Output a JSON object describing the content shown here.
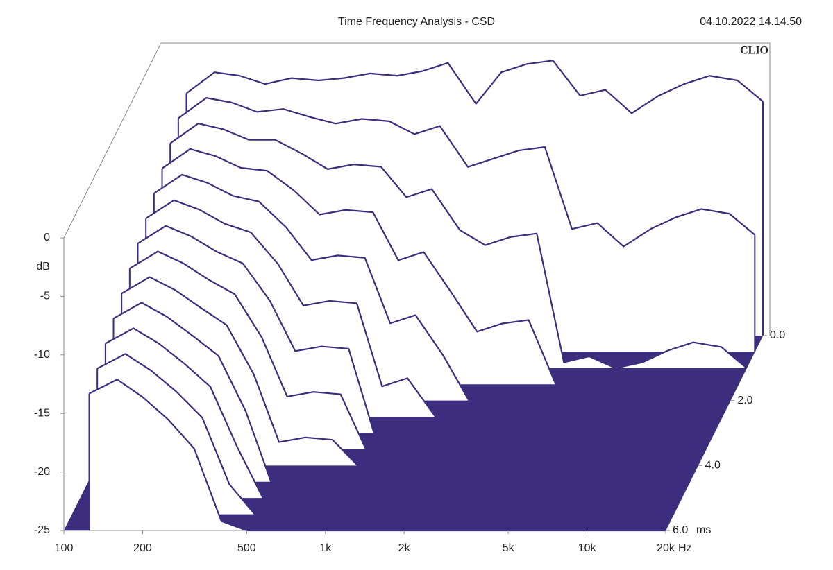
{
  "chart_data": {
    "type": "waterfall",
    "title": "Time Frequency Analysis - CSD",
    "timestamp": "04.10.2022 14.14.50",
    "brand": "CLIO",
    "ylabel": "dB",
    "xunit": "Hz",
    "zunit": "ms",
    "xscale": "log",
    "color": "#3c2d7e",
    "xlim": [
      100,
      20000
    ],
    "ylim": [
      -25,
      0
    ],
    "zlim": [
      0,
      6
    ],
    "xticks": [
      100,
      200,
      500,
      {
        "value": 1000,
        "label": "1k"
      },
      {
        "value": 2000,
        "label": "2k"
      },
      {
        "value": 5000,
        "label": "5k"
      },
      {
        "value": 10000,
        "label": "10k"
      },
      {
        "value": 20000,
        "label": "20k"
      }
    ],
    "yticks": [
      0,
      -5,
      -10,
      -15,
      -20,
      -25
    ],
    "zticks": [
      {
        "value": 0,
        "label": "0.0"
      },
      {
        "value": 2,
        "label": "2.0"
      },
      {
        "value": 4,
        "label": "4.0"
      },
      {
        "value": 6,
        "label": "6.0"
      }
    ],
    "x": [
      125,
      160,
      200,
      250,
      315,
      400,
      500,
      630,
      800,
      1000,
      1250,
      1600,
      2000,
      2500,
      3150,
      4000,
      5000,
      6300,
      8000,
      10000,
      12500,
      16000,
      20000
    ],
    "z": [
      0,
      0.5,
      1,
      1.5,
      2,
      2.5,
      3,
      3.5,
      4,
      4.5,
      5,
      5.5,
      6
    ],
    "values": [
      [
        -4.3,
        -2.5,
        -2.8,
        -3.5,
        -3,
        -3.2,
        -3,
        -2.6,
        -2.8,
        -2.4,
        -1.7,
        -5.2,
        -2.5,
        -1.8,
        -1.5,
        -4.5,
        -4,
        -6,
        -4.5,
        -3.5,
        -2.8,
        -3.2,
        -5
      ],
      [
        -5.05,
        -3.3,
        -3.7,
        -4.5,
        -4.25,
        -4.95,
        -5.5,
        -5.1,
        -5.3,
        -6.4,
        -5.7,
        -9.2,
        -8.5,
        -7.8,
        -7.5,
        -14.5,
        -14,
        -16,
        -14.5,
        -13.5,
        -12.8,
        -13.2,
        -15
      ],
      [
        -5.8,
        -4.1,
        -4.6,
        -5.5,
        -5.5,
        -6.7,
        -8,
        -7.6,
        -7.8,
        -10.4,
        -9.7,
        -13.2,
        -14.5,
        -13.8,
        -13.5,
        -24.5,
        -24,
        -25,
        -24.5,
        -23.5,
        -22.8,
        -23.2,
        -25
      ],
      [
        -6.55,
        -4.9,
        -5.5,
        -6.5,
        -6.75,
        -8.45,
        -10.5,
        -10.1,
        -10.3,
        -14.4,
        -13.7,
        -17.2,
        -20.5,
        -19.8,
        -19.5,
        -25,
        -25,
        -25,
        -25,
        -25,
        -25,
        -25,
        -25
      ],
      [
        -7.3,
        -5.7,
        -6.4,
        -7.5,
        -8,
        -10.2,
        -13,
        -12.6,
        -12.8,
        -18.4,
        -17.7,
        -21.2,
        -25,
        -25,
        -25,
        -25,
        -25,
        -25,
        -25,
        -25,
        -25,
        -25,
        -25
      ],
      [
        -8.05,
        -6.5,
        -7.3,
        -8.5,
        -9.25,
        -11.95,
        -15.5,
        -15.1,
        -15.3,
        -22.4,
        -21.7,
        -25,
        -25,
        -25,
        -25,
        -25,
        -25,
        -25,
        -25,
        -25,
        -25,
        -25,
        -25
      ],
      [
        -8.8,
        -7.3,
        -8.2,
        -9.5,
        -10.5,
        -13.7,
        -18,
        -17.6,
        -17.8,
        -25,
        -25,
        -25,
        -25,
        -25,
        -25,
        -25,
        -25,
        -25,
        -25,
        -25,
        -25,
        -25,
        -25
      ],
      [
        -9.55,
        -8.1,
        -9.1,
        -10.5,
        -11.75,
        -15.45,
        -20.5,
        -20.1,
        -20.3,
        -25,
        -25,
        -25,
        -25,
        -25,
        -25,
        -25,
        -25,
        -25,
        -25,
        -25,
        -25,
        -25,
        -25
      ],
      [
        -10.3,
        -8.9,
        -10,
        -11.5,
        -13,
        -17.2,
        -23,
        -22.6,
        -22.8,
        -25,
        -25,
        -25,
        -25,
        -25,
        -25,
        -25,
        -25,
        -25,
        -25,
        -25,
        -25,
        -25,
        -25
      ],
      [
        -11.05,
        -9.7,
        -10.9,
        -12.5,
        -14.25,
        -18.95,
        -25,
        -25,
        -25,
        -25,
        -25,
        -25,
        -25,
        -25,
        -25,
        -25,
        -25,
        -25,
        -25,
        -25,
        -25,
        -25,
        -25
      ],
      [
        -11.8,
        -10.5,
        -11.8,
        -13.5,
        -15.5,
        -20.7,
        -25,
        -25,
        -25,
        -25,
        -25,
        -25,
        -25,
        -25,
        -25,
        -25,
        -25,
        -25,
        -25,
        -25,
        -25,
        -25,
        -25
      ],
      [
        -12.55,
        -11.3,
        -12.7,
        -14.5,
        -16.75,
        -22.45,
        -25,
        -25,
        -25,
        -25,
        -25,
        -25,
        -25,
        -25,
        -25,
        -25,
        -25,
        -25,
        -25,
        -25,
        -25,
        -25,
        -25
      ],
      [
        -13.3,
        -12.1,
        -13.6,
        -15.5,
        -18,
        -24.2,
        -25,
        -25,
        -25,
        -25,
        -25,
        -25,
        -25,
        -25,
        -25,
        -25,
        -25,
        -25,
        -25,
        -25,
        -25,
        -25,
        -25
      ]
    ]
  }
}
